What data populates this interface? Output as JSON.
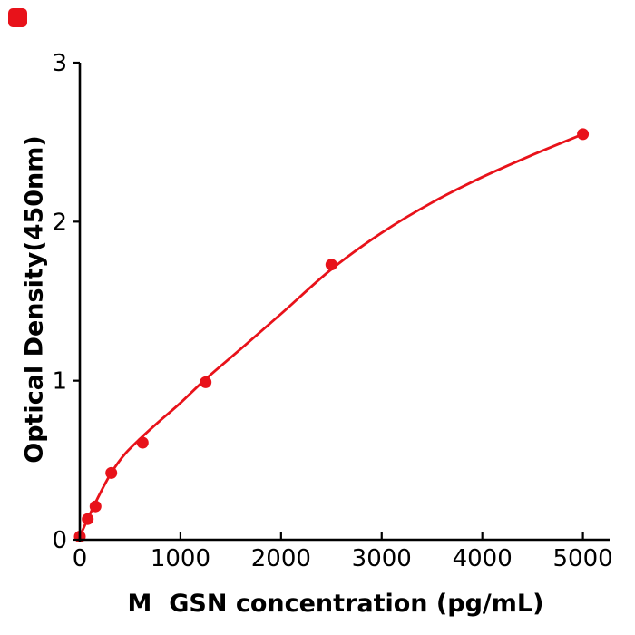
{
  "figure": {
    "background": "#ffffff",
    "badge_color": "#e8121a"
  },
  "chart_data": {
    "type": "scatter",
    "title": "",
    "xlabel": "M  GSN concentration (pg/mL)",
    "ylabel": "Optical Density(450nm)",
    "xlim": [
      0,
      5265
    ],
    "ylim": [
      0,
      3
    ],
    "x_ticks": [
      0,
      1000,
      2000,
      3000,
      4000,
      5000
    ],
    "y_ticks": [
      0,
      1,
      2,
      3
    ],
    "grid": false,
    "legend": null,
    "point_color": "#e8121a",
    "line_color": "#e8121a",
    "axis_color": "#000000",
    "points": [
      {
        "x": 0,
        "y": 0.02
      },
      {
        "x": 78.1,
        "y": 0.13
      },
      {
        "x": 156.2,
        "y": 0.21
      },
      {
        "x": 312.5,
        "y": 0.42
      },
      {
        "x": 625,
        "y": 0.61
      },
      {
        "x": 1250,
        "y": 0.99
      },
      {
        "x": 2500,
        "y": 1.73
      },
      {
        "x": 5000,
        "y": 2.55
      }
    ],
    "curve_points": [
      {
        "x": 0,
        "y": 0.02
      },
      {
        "x": 100,
        "y": 0.16
      },
      {
        "x": 200,
        "y": 0.29
      },
      {
        "x": 312,
        "y": 0.42
      },
      {
        "x": 450,
        "y": 0.54
      },
      {
        "x": 625,
        "y": 0.65
      },
      {
        "x": 800,
        "y": 0.75
      },
      {
        "x": 1000,
        "y": 0.86
      },
      {
        "x": 1250,
        "y": 1.01
      },
      {
        "x": 1600,
        "y": 1.2
      },
      {
        "x": 2000,
        "y": 1.42
      },
      {
        "x": 2500,
        "y": 1.7
      },
      {
        "x": 3000,
        "y": 1.93
      },
      {
        "x": 3500,
        "y": 2.12
      },
      {
        "x": 4000,
        "y": 2.28
      },
      {
        "x": 4500,
        "y": 2.42
      },
      {
        "x": 5000,
        "y": 2.55
      }
    ]
  }
}
